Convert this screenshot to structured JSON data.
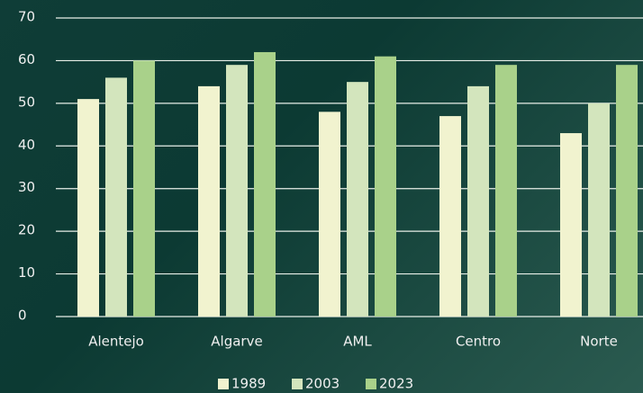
{
  "chart_data": {
    "type": "bar",
    "categories": [
      "Alentejo",
      "Algarve",
      "AML",
      "Centro",
      "Norte"
    ],
    "series": [
      {
        "name": "1989",
        "color": "#f1f3cf",
        "values": [
          51,
          54,
          48,
          47,
          43
        ]
      },
      {
        "name": "2003",
        "color": "#d3e5bd",
        "values": [
          56,
          59,
          55,
          54,
          50
        ]
      },
      {
        "name": "2023",
        "color": "#a9d18a",
        "values": [
          60,
          62,
          61,
          59,
          59
        ]
      }
    ],
    "ylim": [
      0,
      70
    ],
    "yticks": [
      0,
      10,
      20,
      30,
      40,
      50,
      60,
      70
    ],
    "grid": true,
    "legend": "bottom"
  }
}
